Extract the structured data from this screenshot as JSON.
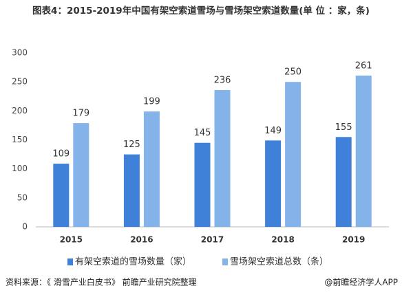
{
  "chart_data": {
    "type": "bar",
    "title": "图表4：2015-2019年中国有架空索道雪场与雪场架空索道数量(单 位 ：家，条)",
    "categories": [
      "2015",
      "2016",
      "2017",
      "2018",
      "2019"
    ],
    "series": [
      {
        "name": "有架空索道的雪场数量（家）",
        "color": "#3f80d9",
        "values": [
          109,
          125,
          145,
          149,
          155
        ]
      },
      {
        "name": "雪场架空索道总数（条）",
        "color": "#84b3ea",
        "values": [
          179,
          199,
          236,
          250,
          261
        ]
      }
    ],
    "ylim": [
      0,
      300
    ],
    "yticks": [
      0,
      50,
      100,
      150,
      200,
      250,
      300
    ],
    "grid": false,
    "legend": "bottom",
    "source": "资料来源：《 滑雪产业白皮书》 前瞻产业研究院整理",
    "credit": "@前瞻经济学人APP"
  }
}
